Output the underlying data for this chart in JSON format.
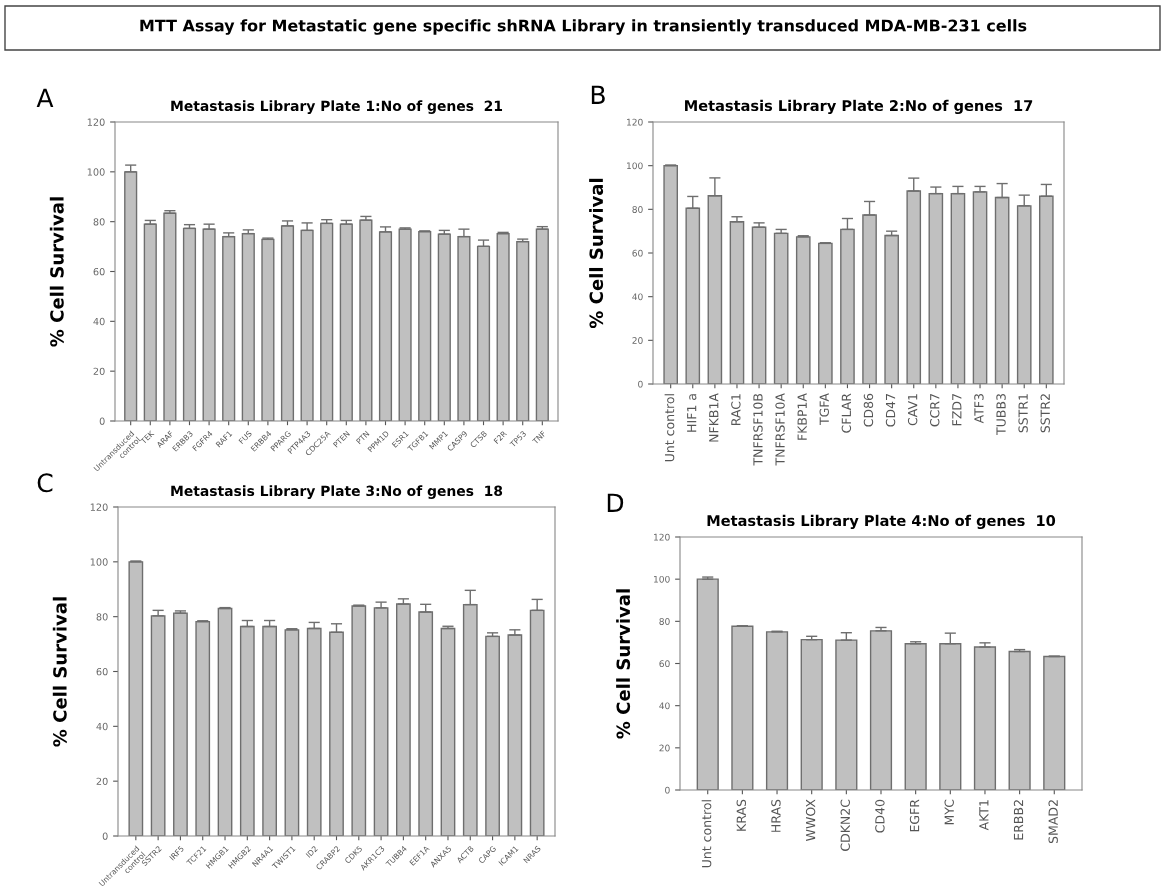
{
  "chart_data": [
    {
      "type": "bar",
      "title": "Metastasis Library Plate 1:No of genes  21",
      "ylabel": "% Cell Survival",
      "annotations": [
        "A",
        "MTT Assay for Metastatic gene specific shRNA Library in transiently transduced MDA-MB-231 cells"
      ],
      "categories": [
        "Untransduced\ncontrol",
        "TEK",
        "ARAF",
        "ERBB3",
        "FGFR4",
        "RAF1",
        "FUS",
        "ERBB4",
        "PPARG",
        "PTP4A3",
        "CDC25A",
        "PTEN",
        "PTN",
        "PPM1D",
        "ESR1",
        "TGFB1",
        "MMP1",
        "CASP9",
        "CTSB",
        "F2R",
        "TP53",
        "TNF"
      ],
      "values": [
        100,
        79,
        83.4,
        77.3,
        77,
        74,
        75.2,
        72.9,
        78.3,
        76.5,
        79.3,
        79,
        80.6,
        75.9,
        77,
        76,
        75,
        74,
        70.1,
        75.2,
        72,
        77
      ],
      "errors": [
        [
          100,
          102.7
        ],
        [
          79,
          80.5
        ],
        [
          83.4,
          84.4
        ],
        [
          77.3,
          78.8
        ],
        [
          77,
          79
        ],
        [
          74,
          75.5
        ],
        [
          75.2,
          76.7
        ],
        [
          72.9,
          73.4
        ],
        [
          78.3,
          80.3
        ],
        [
          76.5,
          79.5
        ],
        [
          79.3,
          80.8
        ],
        [
          79,
          80.5
        ],
        [
          80.6,
          82.1
        ],
        [
          75.9,
          77.9
        ],
        [
          77,
          77.5
        ],
        [
          76,
          76.3
        ],
        [
          75,
          76.5
        ],
        [
          74,
          77
        ],
        [
          70.1,
          72.6
        ],
        [
          75.2,
          75.7
        ],
        [
          72,
          73
        ],
        [
          77,
          78
        ]
      ],
      "color": "#c0c0c0",
      "ylim": [
        0,
        120
      ],
      "yticks": [
        0,
        20,
        40,
        60,
        80,
        100,
        120
      ],
      "grid": false,
      "legend": false
    },
    {
      "type": "bar",
      "title": "Metastasis Library Plate 2:No of genes  17",
      "ylabel": "% Cell Survival",
      "annotations": [
        "B"
      ],
      "categories": [
        "Unt control",
        "HIF1 a",
        "NFKB1A",
        "RAC1",
        "TNFRSF10B",
        "TNFRSF10A",
        "FKBP1A",
        "TGFA",
        "CFLAR",
        "CD86",
        "CD47",
        "CAV1",
        "CCR7",
        "FZD7",
        "ATF3",
        "TUBB3",
        "SSTR1",
        "SSTR2"
      ],
      "values": [
        100,
        80.5,
        86.2,
        74.3,
        71.8,
        69,
        67.4,
        64.4,
        70.8,
        77.4,
        68,
        88.4,
        87.2,
        87.2,
        88,
        85.4,
        81.6,
        86
      ],
      "errors": [
        [
          100,
          100.3
        ],
        [
          80.5,
          85.9
        ],
        [
          86.2,
          94.4
        ],
        [
          74.3,
          76.6
        ],
        [
          71.8,
          73.8
        ],
        [
          69,
          70.8
        ],
        [
          67.4,
          67.9
        ],
        [
          64.4,
          64.7
        ],
        [
          70.8,
          75.8
        ],
        [
          77.4,
          83.6
        ],
        [
          68,
          70
        ],
        [
          88.4,
          94.3
        ],
        [
          87.2,
          90.2
        ],
        [
          87.2,
          90.5
        ],
        [
          88,
          90.5
        ],
        [
          85.4,
          91.8
        ],
        [
          81.6,
          86.5
        ],
        [
          86,
          91.4
        ]
      ],
      "color": "#c0c0c0",
      "ylim": [
        0,
        120
      ],
      "yticks": [
        0,
        20,
        40,
        60,
        80,
        100,
        120
      ],
      "grid": false,
      "legend": false
    },
    {
      "type": "bar",
      "title": "Metastasis Library Plate 3:No of genes  18",
      "ylabel": "% Cell Survival",
      "annotations": [
        "C"
      ],
      "categories": [
        "Untransduced\ncontrol",
        "SSTR2",
        "IRF5",
        "TCF21",
        "HMGB1",
        "HMGB2",
        "NR4A1",
        "TWIST1",
        "ID2",
        "CRABP2",
        "CDK5",
        "AKR1C3",
        "TUBB4",
        "EEF1A",
        "ANXA5",
        "ACTB",
        "CAPG",
        "ICAM1",
        "NRAS"
      ],
      "values": [
        100,
        80.3,
        81.3,
        78.2,
        83,
        76.4,
        76.4,
        75.2,
        75.7,
        74.3,
        83.9,
        83.2,
        84.6,
        81.7,
        75.7,
        84.4,
        72.8,
        73.3,
        82.3
      ],
      "errors": [
        [
          100,
          100.3
        ],
        [
          80.3,
          82.3
        ],
        [
          81.3,
          82.1
        ],
        [
          78.2,
          78.5
        ],
        [
          83,
          83.3
        ],
        [
          76.4,
          78.6
        ],
        [
          76.4,
          78.6
        ],
        [
          75.2,
          75.6
        ],
        [
          75.7,
          77.9
        ],
        [
          74.3,
          77.4
        ],
        [
          83.9,
          84.2
        ],
        [
          83.2,
          85.3
        ],
        [
          84.6,
          86.5
        ],
        [
          81.7,
          84.5
        ],
        [
          75.7,
          76.5
        ],
        [
          84.4,
          89.6
        ],
        [
          72.8,
          74.1
        ],
        [
          73.3,
          75.2
        ],
        [
          82.3,
          86.3
        ]
      ],
      "color": "#c0c0c0",
      "ylim": [
        0,
        120
      ],
      "yticks": [
        0,
        20,
        40,
        60,
        80,
        100,
        120
      ],
      "grid": false,
      "legend": false
    },
    {
      "type": "bar",
      "title": "Metastasis Library Plate 4:No of genes  10",
      "ylabel": "% Cell Survival",
      "annotations": [
        "D"
      ],
      "categories": [
        "Unt control",
        "KRAS",
        "HRAS",
        "WWOX",
        "CDKN2C",
        "CD40",
        "EGFR",
        "MYC",
        "AKT1",
        "ERBB2",
        "SMAD2"
      ],
      "values": [
        100,
        77.7,
        75,
        71.3,
        71.1,
        75.5,
        69.4,
        69.4,
        67.8,
        65.7,
        63.3
      ],
      "errors": [
        [
          100,
          101
        ],
        [
          77.7,
          77.9
        ],
        [
          75,
          75.3
        ],
        [
          71.3,
          72.9
        ],
        [
          71.1,
          74.6
        ],
        [
          75.5,
          77.1
        ],
        [
          69.4,
          70.3
        ],
        [
          69.4,
          74.4
        ],
        [
          67.8,
          69.8
        ],
        [
          65.7,
          66.6
        ],
        [
          63.3,
          63.5
        ]
      ],
      "color": "#c0c0c0",
      "ylim": [
        0,
        120
      ],
      "yticks": [
        0,
        20,
        40,
        60,
        80,
        100,
        120
      ],
      "grid": false,
      "legend": false
    }
  ]
}
